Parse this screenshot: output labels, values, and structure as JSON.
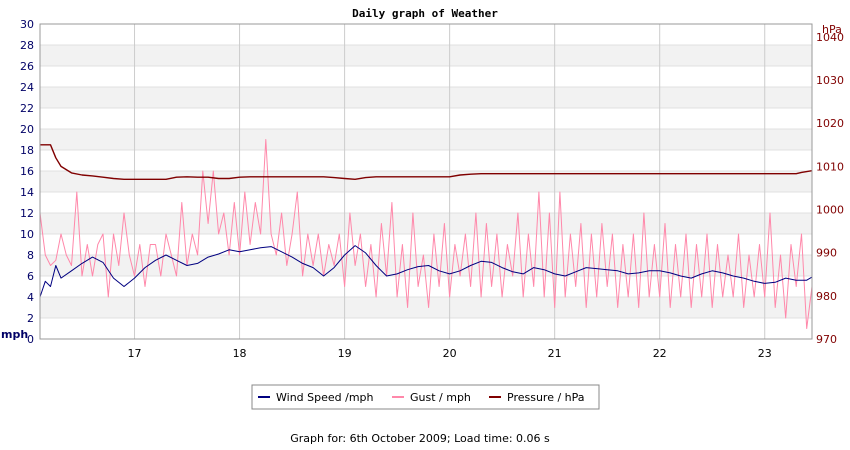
{
  "chart_data": {
    "type": "line",
    "title": "Daily graph of Weather",
    "x_ticks": [
      "17",
      "18",
      "19",
      "20",
      "21",
      "22",
      "23"
    ],
    "x_range": [
      16.1,
      23.45
    ],
    "y_left": {
      "unit": "mph",
      "range": [
        0,
        30
      ],
      "ticks": [
        "0",
        "2",
        "4",
        "6",
        "8",
        "10",
        "12",
        "14",
        "16",
        "18",
        "20",
        "22",
        "24",
        "26",
        "28",
        "30"
      ]
    },
    "y_right": {
      "unit": "hPa",
      "range": [
        970,
        1043
      ],
      "ticks": [
        "970",
        "980",
        "990",
        "1000",
        "1010",
        "1020",
        "1030",
        "1040"
      ]
    },
    "grid": true,
    "legend_position": "bottom",
    "series": [
      {
        "name": "Wind Speed /mph",
        "axis": "left",
        "color": "#000080",
        "points": [
          [
            16.1,
            4
          ],
          [
            16.15,
            5.5
          ],
          [
            16.2,
            5
          ],
          [
            16.25,
            7
          ],
          [
            16.3,
            5.8
          ],
          [
            16.4,
            6.5
          ],
          [
            16.5,
            7.2
          ],
          [
            16.6,
            7.8
          ],
          [
            16.7,
            7.3
          ],
          [
            16.8,
            5.8
          ],
          [
            16.9,
            5.0
          ],
          [
            17.0,
            5.8
          ],
          [
            17.1,
            6.8
          ],
          [
            17.2,
            7.5
          ],
          [
            17.3,
            8.0
          ],
          [
            17.4,
            7.5
          ],
          [
            17.5,
            7.0
          ],
          [
            17.6,
            7.2
          ],
          [
            17.7,
            7.8
          ],
          [
            17.8,
            8.1
          ],
          [
            17.9,
            8.5
          ],
          [
            18.0,
            8.3
          ],
          [
            18.1,
            8.5
          ],
          [
            18.2,
            8.7
          ],
          [
            18.3,
            8.8
          ],
          [
            18.4,
            8.3
          ],
          [
            18.5,
            7.8
          ],
          [
            18.6,
            7.2
          ],
          [
            18.7,
            6.8
          ],
          [
            18.8,
            6.0
          ],
          [
            18.9,
            6.8
          ],
          [
            19.0,
            8.0
          ],
          [
            19.1,
            8.9
          ],
          [
            19.2,
            8.2
          ],
          [
            19.3,
            7.0
          ],
          [
            19.4,
            6.0
          ],
          [
            19.5,
            6.2
          ],
          [
            19.6,
            6.6
          ],
          [
            19.7,
            6.9
          ],
          [
            19.8,
            7.0
          ],
          [
            19.9,
            6.5
          ],
          [
            20.0,
            6.2
          ],
          [
            20.1,
            6.5
          ],
          [
            20.2,
            7.0
          ],
          [
            20.3,
            7.4
          ],
          [
            20.4,
            7.3
          ],
          [
            20.5,
            6.8
          ],
          [
            20.6,
            6.4
          ],
          [
            20.7,
            6.2
          ],
          [
            20.8,
            6.8
          ],
          [
            20.9,
            6.6
          ],
          [
            21.0,
            6.2
          ],
          [
            21.1,
            6.0
          ],
          [
            21.2,
            6.4
          ],
          [
            21.3,
            6.8
          ],
          [
            21.4,
            6.7
          ],
          [
            21.5,
            6.6
          ],
          [
            21.6,
            6.5
          ],
          [
            21.7,
            6.2
          ],
          [
            21.8,
            6.3
          ],
          [
            21.9,
            6.5
          ],
          [
            22.0,
            6.5
          ],
          [
            22.1,
            6.3
          ],
          [
            22.2,
            6.0
          ],
          [
            22.3,
            5.8
          ],
          [
            22.4,
            6.2
          ],
          [
            22.5,
            6.5
          ],
          [
            22.6,
            6.3
          ],
          [
            22.7,
            6.0
          ],
          [
            22.8,
            5.8
          ],
          [
            22.9,
            5.5
          ],
          [
            23.0,
            5.3
          ],
          [
            23.1,
            5.4
          ],
          [
            23.2,
            5.8
          ],
          [
            23.3,
            5.6
          ],
          [
            23.4,
            5.6
          ],
          [
            23.45,
            5.9
          ]
        ]
      },
      {
        "name": "Gust / mph",
        "axis": "left",
        "color": "#ff88aa",
        "points": [
          [
            16.1,
            12
          ],
          [
            16.15,
            8
          ],
          [
            16.2,
            7
          ],
          [
            16.25,
            7.5
          ],
          [
            16.3,
            10
          ],
          [
            16.35,
            8
          ],
          [
            16.4,
            7
          ],
          [
            16.45,
            14
          ],
          [
            16.5,
            6
          ],
          [
            16.55,
            9
          ],
          [
            16.6,
            6
          ],
          [
            16.65,
            9
          ],
          [
            16.7,
            10
          ],
          [
            16.75,
            4
          ],
          [
            16.8,
            10
          ],
          [
            16.85,
            7
          ],
          [
            16.9,
            12
          ],
          [
            16.95,
            8
          ],
          [
            17.0,
            6
          ],
          [
            17.05,
            9
          ],
          [
            17.1,
            5
          ],
          [
            17.15,
            9
          ],
          [
            17.2,
            9
          ],
          [
            17.25,
            6
          ],
          [
            17.3,
            10
          ],
          [
            17.35,
            8
          ],
          [
            17.4,
            6
          ],
          [
            17.45,
            13
          ],
          [
            17.5,
            7
          ],
          [
            17.55,
            10
          ],
          [
            17.6,
            8
          ],
          [
            17.65,
            16
          ],
          [
            17.7,
            11
          ],
          [
            17.75,
            16
          ],
          [
            17.8,
            10
          ],
          [
            17.85,
            12
          ],
          [
            17.9,
            8
          ],
          [
            17.95,
            13
          ],
          [
            18.0,
            8
          ],
          [
            18.05,
            14
          ],
          [
            18.1,
            9
          ],
          [
            18.15,
            13
          ],
          [
            18.2,
            10
          ],
          [
            18.25,
            19
          ],
          [
            18.3,
            10
          ],
          [
            18.35,
            8
          ],
          [
            18.4,
            12
          ],
          [
            18.45,
            7
          ],
          [
            18.5,
            10
          ],
          [
            18.55,
            14
          ],
          [
            18.6,
            6
          ],
          [
            18.65,
            10
          ],
          [
            18.7,
            7
          ],
          [
            18.75,
            10
          ],
          [
            18.8,
            6
          ],
          [
            18.85,
            9
          ],
          [
            18.9,
            7
          ],
          [
            18.95,
            10
          ],
          [
            19.0,
            5
          ],
          [
            19.05,
            12
          ],
          [
            19.1,
            7
          ],
          [
            19.15,
            10
          ],
          [
            19.2,
            5
          ],
          [
            19.25,
            9
          ],
          [
            19.3,
            4
          ],
          [
            19.35,
            11
          ],
          [
            19.4,
            6
          ],
          [
            19.45,
            13
          ],
          [
            19.5,
            4
          ],
          [
            19.55,
            9
          ],
          [
            19.6,
            3
          ],
          [
            19.65,
            12
          ],
          [
            19.7,
            5
          ],
          [
            19.75,
            8
          ],
          [
            19.8,
            3
          ],
          [
            19.85,
            10
          ],
          [
            19.9,
            5
          ],
          [
            19.95,
            11
          ],
          [
            20.0,
            4
          ],
          [
            20.05,
            9
          ],
          [
            20.1,
            6
          ],
          [
            20.15,
            10
          ],
          [
            20.2,
            5
          ],
          [
            20.25,
            12
          ],
          [
            20.3,
            4
          ],
          [
            20.35,
            11
          ],
          [
            20.4,
            5
          ],
          [
            20.45,
            10
          ],
          [
            20.5,
            4
          ],
          [
            20.55,
            9
          ],
          [
            20.6,
            6
          ],
          [
            20.65,
            12
          ],
          [
            20.7,
            4
          ],
          [
            20.75,
            10
          ],
          [
            20.8,
            5
          ],
          [
            20.85,
            14
          ],
          [
            20.9,
            4
          ],
          [
            20.95,
            12
          ],
          [
            21.0,
            3
          ],
          [
            21.05,
            14
          ],
          [
            21.1,
            4
          ],
          [
            21.15,
            10
          ],
          [
            21.2,
            5
          ],
          [
            21.25,
            11
          ],
          [
            21.3,
            3
          ],
          [
            21.35,
            10
          ],
          [
            21.4,
            4
          ],
          [
            21.45,
            11
          ],
          [
            21.5,
            5
          ],
          [
            21.55,
            10
          ],
          [
            21.6,
            3
          ],
          [
            21.65,
            9
          ],
          [
            21.7,
            4
          ],
          [
            21.75,
            10
          ],
          [
            21.8,
            3
          ],
          [
            21.85,
            12
          ],
          [
            21.9,
            4
          ],
          [
            21.95,
            9
          ],
          [
            22.0,
            4
          ],
          [
            22.05,
            11
          ],
          [
            22.1,
            3
          ],
          [
            22.15,
            9
          ],
          [
            22.2,
            4
          ],
          [
            22.25,
            10
          ],
          [
            22.3,
            3
          ],
          [
            22.35,
            9
          ],
          [
            22.4,
            4
          ],
          [
            22.45,
            10
          ],
          [
            22.5,
            3
          ],
          [
            22.55,
            9
          ],
          [
            22.6,
            4
          ],
          [
            22.65,
            8
          ],
          [
            22.7,
            4
          ],
          [
            22.75,
            10
          ],
          [
            22.8,
            3
          ],
          [
            22.85,
            8
          ],
          [
            22.9,
            4
          ],
          [
            22.95,
            9
          ],
          [
            23.0,
            4
          ],
          [
            23.05,
            12
          ],
          [
            23.1,
            3
          ],
          [
            23.15,
            8
          ],
          [
            23.2,
            2
          ],
          [
            23.25,
            9
          ],
          [
            23.3,
            5
          ],
          [
            23.35,
            10
          ],
          [
            23.4,
            1
          ],
          [
            23.45,
            5
          ]
        ]
      },
      {
        "name": "Pressure / hPa",
        "axis": "right",
        "color": "#800000",
        "points": [
          [
            16.1,
            1015
          ],
          [
            16.2,
            1015
          ],
          [
            16.25,
            1012
          ],
          [
            16.3,
            1010
          ],
          [
            16.4,
            1008.5
          ],
          [
            16.5,
            1008
          ],
          [
            16.6,
            1007.8
          ],
          [
            16.7,
            1007.5
          ],
          [
            16.8,
            1007.2
          ],
          [
            16.9,
            1007
          ],
          [
            17.0,
            1007
          ],
          [
            17.2,
            1007
          ],
          [
            17.3,
            1007
          ],
          [
            17.4,
            1007.5
          ],
          [
            17.5,
            1007.6
          ],
          [
            17.6,
            1007.5
          ],
          [
            17.7,
            1007.5
          ],
          [
            17.8,
            1007.2
          ],
          [
            17.9,
            1007.2
          ],
          [
            18.0,
            1007.5
          ],
          [
            18.1,
            1007.6
          ],
          [
            18.2,
            1007.6
          ],
          [
            18.4,
            1007.6
          ],
          [
            18.6,
            1007.6
          ],
          [
            18.8,
            1007.6
          ],
          [
            18.9,
            1007.4
          ],
          [
            19.0,
            1007.2
          ],
          [
            19.1,
            1007.0
          ],
          [
            19.2,
            1007.4
          ],
          [
            19.3,
            1007.6
          ],
          [
            19.5,
            1007.6
          ],
          [
            19.8,
            1007.6
          ],
          [
            20.0,
            1007.6
          ],
          [
            20.1,
            1008.0
          ],
          [
            20.2,
            1008.2
          ],
          [
            20.3,
            1008.3
          ],
          [
            20.5,
            1008.3
          ],
          [
            21.0,
            1008.3
          ],
          [
            21.5,
            1008.3
          ],
          [
            22.0,
            1008.3
          ],
          [
            22.5,
            1008.3
          ],
          [
            23.0,
            1008.3
          ],
          [
            23.3,
            1008.3
          ],
          [
            23.35,
            1008.6
          ],
          [
            23.45,
            1009.0
          ]
        ]
      }
    ]
  },
  "footer": "Graph for: 6th October 2009; Load time: 0.06 s"
}
